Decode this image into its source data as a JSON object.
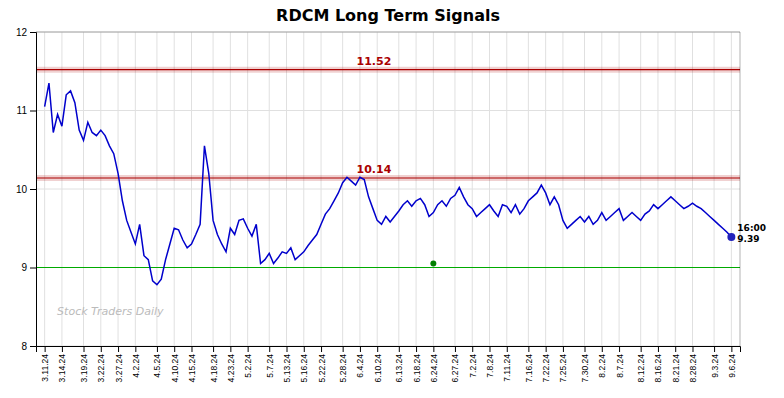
{
  "chart_data": {
    "type": "line",
    "title": "RDCM Long Term Signals",
    "categories": [
      "3.11.24",
      null,
      null,
      null,
      "3.14.24",
      null,
      null,
      null,
      null,
      "3.19.24",
      null,
      null,
      null,
      "3.22.24",
      null,
      null,
      null,
      "3.27.24",
      null,
      null,
      null,
      "4.2.24",
      null,
      null,
      null,
      null,
      "4.5.24",
      null,
      null,
      null,
      "4.10.24",
      null,
      null,
      null,
      "4.15.24",
      null,
      null,
      null,
      null,
      "4.18.24",
      null,
      null,
      null,
      "4.23.24",
      null,
      null,
      null,
      "5.2.24",
      null,
      null,
      null,
      null,
      "5.7.24",
      null,
      null,
      null,
      "5.13.24",
      null,
      null,
      null,
      "5.16.24",
      null,
      null,
      null,
      "5.22.24",
      null,
      null,
      null,
      null,
      "5.28.24",
      null,
      null,
      null,
      "6.4.24",
      null,
      null,
      null,
      "6.10.24",
      null,
      null,
      null,
      null,
      "6.13.24",
      null,
      null,
      null,
      "6.18.24",
      null,
      null,
      null,
      "6.24.24",
      null,
      null,
      null,
      null,
      "6.27.24",
      null,
      null,
      null,
      "7.2.24",
      null,
      null,
      null,
      "7.8.24",
      null,
      null,
      null,
      "7.11.24",
      null,
      null,
      null,
      null,
      "7.16.24",
      null,
      null,
      null,
      "7.22.24",
      null,
      null,
      null,
      "7.25.24",
      null,
      null,
      null,
      null,
      "7.30.24",
      null,
      null,
      null,
      "8.2.24",
      null,
      null,
      null,
      "8.7.24",
      null,
      null,
      null,
      null,
      "8.12.24",
      null,
      null,
      null,
      "8.16.24",
      null,
      null,
      null,
      "8.21.24",
      null,
      null,
      null,
      "8.28.24",
      null,
      null,
      null,
      null,
      "9.3.24",
      null,
      null,
      null,
      "9.6.24"
    ],
    "series": [
      {
        "color": "#0000cc",
        "values": [
          11.05,
          11.35,
          10.72,
          10.95,
          10.8,
          11.2,
          11.25,
          11.1,
          10.75,
          10.62,
          10.85,
          10.72,
          10.68,
          10.75,
          10.68,
          10.55,
          10.45,
          10.2,
          9.85,
          9.6,
          9.45,
          9.3,
          9.55,
          9.15,
          9.1,
          8.83,
          8.78,
          8.85,
          9.1,
          9.3,
          9.5,
          9.48,
          9.35,
          9.25,
          9.3,
          9.42,
          9.55,
          10.55,
          10.2,
          9.6,
          9.42,
          9.3,
          9.2,
          9.5,
          9.42,
          9.6,
          9.62,
          9.5,
          9.4,
          9.55,
          9.05,
          9.1,
          9.18,
          9.05,
          9.12,
          9.2,
          9.18,
          9.25,
          9.1,
          9.15,
          9.2,
          9.28,
          9.35,
          9.42,
          9.55,
          9.68,
          9.75,
          9.85,
          9.95,
          10.08,
          10.15,
          10.1,
          10.05,
          10.15,
          10.12,
          9.9,
          9.75,
          9.6,
          9.55,
          9.65,
          9.58,
          9.65,
          9.72,
          9.8,
          9.85,
          9.78,
          9.85,
          9.88,
          9.8,
          9.65,
          9.7,
          9.8,
          9.85,
          9.78,
          9.88,
          9.92,
          10.02,
          9.9,
          9.8,
          9.75,
          9.65,
          9.7,
          9.75,
          9.8,
          9.72,
          9.65,
          9.8,
          9.78,
          9.7,
          9.8,
          9.68,
          9.75,
          9.85,
          9.9,
          9.95,
          10.05,
          9.95,
          9.8,
          9.9,
          9.8,
          9.6,
          9.5,
          9.55,
          9.6,
          9.65,
          9.58,
          9.65,
          9.55,
          9.6,
          9.7,
          9.6,
          9.65,
          9.7,
          9.75,
          9.6,
          9.65,
          9.7,
          9.65,
          9.6,
          9.68,
          9.72,
          9.8,
          9.75,
          9.8,
          9.85,
          9.9,
          9.85,
          9.8,
          9.75,
          9.78,
          9.82,
          9.78,
          9.75,
          9.7,
          9.65,
          9.6,
          9.55,
          9.5,
          9.45,
          9.39
        ]
      }
    ],
    "ylim": [
      8,
      12
    ],
    "yticks": [
      8,
      9,
      10,
      11,
      12
    ],
    "grid": true,
    "reference_lines": [
      {
        "value": 11.52,
        "label": "11.52",
        "color": "#aa0000"
      },
      {
        "value": 10.14,
        "label": "10.14",
        "color": "#aa0000"
      },
      {
        "value": 9.0,
        "color": "#00aa00"
      }
    ],
    "points": [
      {
        "x": "6.24.24",
        "y": 9.05,
        "color": "green"
      }
    ],
    "last_point": {
      "color": "#2222bb",
      "labels": [
        "16:00",
        "9.39"
      ]
    },
    "watermark": "Stock Traders Daily"
  }
}
